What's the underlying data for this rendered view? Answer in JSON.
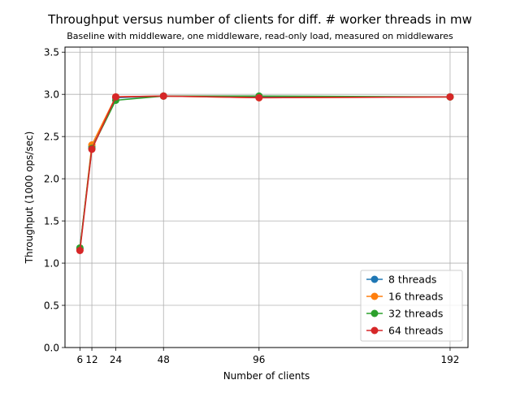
{
  "chart_data": {
    "type": "line",
    "title": "Throughput versus number of clients for diff. # worker threads in mw",
    "subtitle": "Baseline with middleware, one middleware, read-only load, measured on middlewares",
    "xlabel": "Number of clients",
    "ylabel": "Throughput (1000 ops/sec)",
    "x": [
      6,
      12,
      24,
      48,
      96,
      192
    ],
    "xticks": [
      6,
      12,
      24,
      48,
      96,
      192
    ],
    "xlim": [
      -1.5,
      201
    ],
    "ylim": [
      0,
      3.56
    ],
    "yticks": [
      0.0,
      0.5,
      1.0,
      1.5,
      2.0,
      2.5,
      3.0,
      3.5
    ],
    "grid": true,
    "legend_position": "bottom-right",
    "markers": "circle with error bars",
    "series": [
      {
        "name": "8 threads",
        "color": "#1f77b4",
        "values": [
          1.17,
          2.38,
          2.96,
          2.98,
          2.97,
          2.97
        ]
      },
      {
        "name": "16 threads",
        "color": "#ff7f0e",
        "values": [
          1.16,
          2.4,
          2.97,
          2.98,
          2.96,
          2.97
        ]
      },
      {
        "name": "32 threads",
        "color": "#2ca02c",
        "values": [
          1.18,
          2.36,
          2.93,
          2.98,
          2.98,
          2.97
        ]
      },
      {
        "name": "64 threads",
        "color": "#d62728",
        "values": [
          1.15,
          2.35,
          2.97,
          2.98,
          2.96,
          2.97
        ]
      }
    ]
  }
}
